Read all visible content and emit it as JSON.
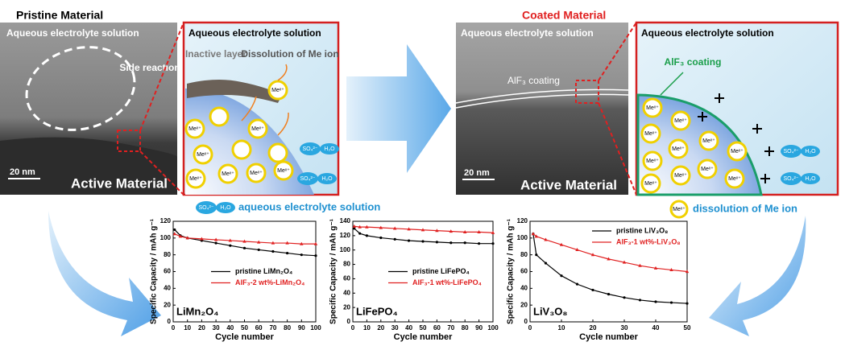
{
  "panels": {
    "pristine_title": "Pristine Material",
    "coated_title": "Coated Material",
    "electrolyte": "Aqueous electrolyte solution",
    "side_reaction": "Side reaction",
    "scale_bar": "20 nm",
    "active_material": "Active Material",
    "inactive_layer": "Inactive layer",
    "dissolution": "Dissolution of Me ion",
    "me_ion": "Meˣ⁺",
    "so4": "SO₄²⁻",
    "h2o": "H₂O",
    "alf3_coating_tem": "AlF₃ coating",
    "alf3_coating": "AlF₃ coating",
    "legend_electrolyte": "aqueous electrolyte solution",
    "legend_dissolution": "dissolution of Me ion"
  },
  "chart_data": [
    {
      "type": "line",
      "label": "LiMn₂O₄",
      "xlabel": "Cycle number",
      "ylabel": "Specific Capacity / mAh g⁻¹",
      "xlim": [
        0,
        100
      ],
      "xticks": [
        0,
        10,
        20,
        30,
        40,
        50,
        60,
        70,
        80,
        90,
        100
      ],
      "ylim": [
        0,
        120
      ],
      "yticks": [
        0,
        20,
        40,
        60,
        80,
        100,
        120
      ],
      "legend": "center right",
      "x": [
        1,
        5,
        10,
        20,
        30,
        40,
        50,
        60,
        70,
        80,
        90,
        100
      ],
      "series": [
        {
          "name": "pristine LiMn₂O₄",
          "color": "#000000",
          "values": [
            110,
            103,
            100,
            97,
            94,
            91,
            88,
            86,
            84,
            82,
            80,
            79
          ]
        },
        {
          "name": "AlF₃-2 wt%-LiMn₂O₄",
          "color": "#e02020",
          "values": [
            105,
            102,
            100,
            99,
            98,
            97,
            96,
            95,
            94,
            94,
            93,
            93
          ]
        }
      ]
    },
    {
      "type": "line",
      "label": "LiFePO₄",
      "xlabel": "Cycle number",
      "ylabel": "Specific Capacity / mAh g⁻¹",
      "xlim": [
        0,
        100
      ],
      "xticks": [
        0,
        10,
        20,
        30,
        40,
        50,
        60,
        70,
        80,
        90,
        100
      ],
      "ylim": [
        0,
        140
      ],
      "yticks": [
        0,
        20,
        40,
        60,
        80,
        100,
        120,
        140
      ],
      "legend": "center right",
      "x": [
        1,
        5,
        10,
        20,
        30,
        40,
        50,
        60,
        70,
        80,
        90,
        100
      ],
      "series": [
        {
          "name": "pristine LiFePO₄",
          "color": "#000000",
          "values": [
            130,
            123,
            120,
            117,
            115,
            113,
            112,
            111,
            110,
            110,
            109,
            109
          ]
        },
        {
          "name": "AlF₃-1 wt%-LiFePO₄",
          "color": "#e02020",
          "values": [
            133,
            132,
            132,
            131,
            130,
            129,
            128,
            127,
            126,
            125,
            125,
            124
          ]
        }
      ]
    },
    {
      "type": "line",
      "label": "LiV₃O₈",
      "xlabel": "Cycle number",
      "ylabel": "Specific Capacity / mAh g⁻¹",
      "xlim": [
        0,
        50
      ],
      "xticks": [
        0,
        10,
        20,
        30,
        40,
        50
      ],
      "ylim": [
        0,
        120
      ],
      "yticks": [
        0,
        20,
        40,
        60,
        80,
        100,
        120
      ],
      "legend": "upper right",
      "x": [
        1,
        2,
        5,
        10,
        15,
        20,
        25,
        30,
        35,
        40,
        45,
        50
      ],
      "series": [
        {
          "name": "pristine LiV₃O₈",
          "color": "#000000",
          "values": [
            105,
            80,
            70,
            55,
            45,
            38,
            33,
            29,
            26,
            24,
            23,
            22
          ]
        },
        {
          "name": "AlF₃-1 wt%-LiV₃O₈",
          "color": "#e02020",
          "values": [
            105,
            102,
            98,
            92,
            86,
            80,
            75,
            71,
            67,
            64,
            62,
            60
          ]
        }
      ]
    }
  ]
}
